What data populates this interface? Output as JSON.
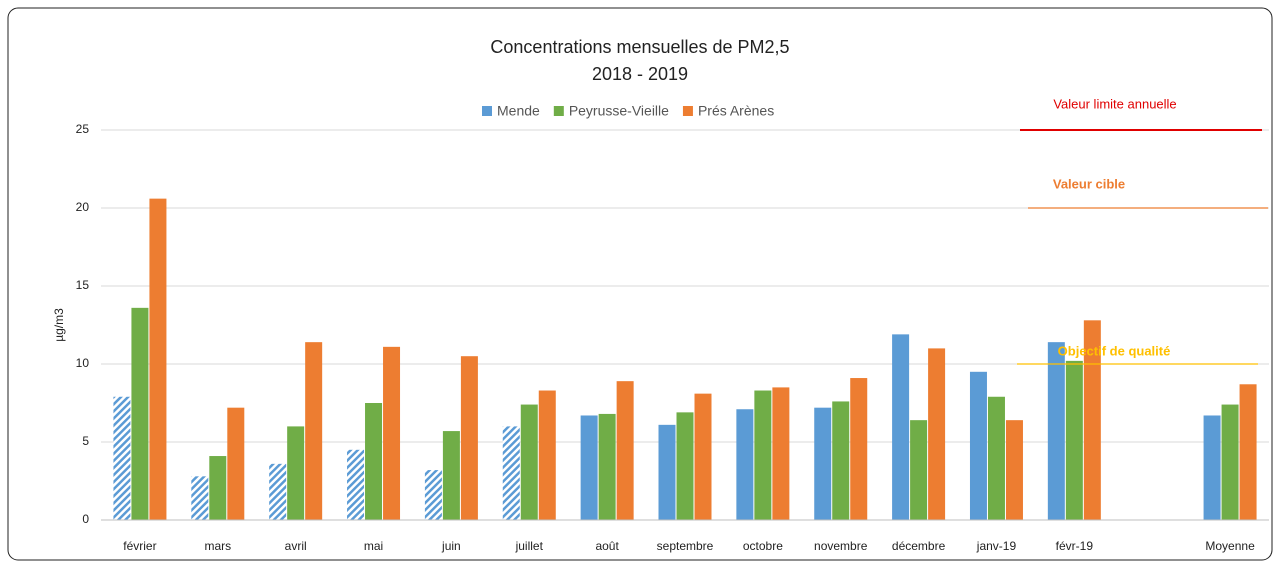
{
  "chart_data": {
    "type": "bar",
    "title": "Concentrations mensuelles de PM2,5",
    "subtitle": "2018 - 2019",
    "y_label": "µg/m3",
    "categories": [
      "février",
      "mars",
      "avril",
      "mai",
      "juin",
      "juillet",
      "août",
      "septembre",
      "octobre",
      "novembre",
      "décembre",
      "janv-19",
      "févr-19",
      null,
      "Moyenne"
    ],
    "series": [
      {
        "name": "Mende",
        "color": "#5b9bd5",
        "values": [
          7.9,
          2.8,
          3.6,
          4.5,
          3.2,
          6.0,
          6.7,
          6.1,
          7.1,
          7.2,
          11.9,
          9.5,
          11.4,
          null,
          6.7
        ],
        "hatched": [
          true,
          true,
          true,
          true,
          true,
          true,
          false,
          false,
          false,
          false,
          false,
          false,
          false,
          false,
          false
        ]
      },
      {
        "name": "Peyrusse-Vieille",
        "color": "#70ad47",
        "values": [
          13.6,
          4.1,
          6.0,
          7.5,
          5.7,
          7.4,
          6.8,
          6.9,
          8.3,
          7.6,
          6.4,
          7.9,
          10.2,
          null,
          7.4
        ]
      },
      {
        "name": "Prés Arènes",
        "color": "#ed7d31",
        "values": [
          20.6,
          7.2,
          11.4,
          11.1,
          10.5,
          8.3,
          8.9,
          8.1,
          8.5,
          9.1,
          11.0,
          6.4,
          12.8,
          null,
          8.7
        ]
      }
    ],
    "reference_lines": [
      {
        "label": "Valeur limite annuelle",
        "value": 25,
        "color": "#e00000"
      },
      {
        "label": "Valeur cible",
        "value": 20,
        "color": "#ed7d31"
      },
      {
        "label": "Objectif de qualité",
        "value": 10,
        "color": "#ffc000"
      }
    ],
    "ylim": [
      0,
      25
    ],
    "yticks": [
      0,
      5,
      10,
      15,
      20,
      25
    ],
    "grid": true,
    "legend": "top"
  }
}
